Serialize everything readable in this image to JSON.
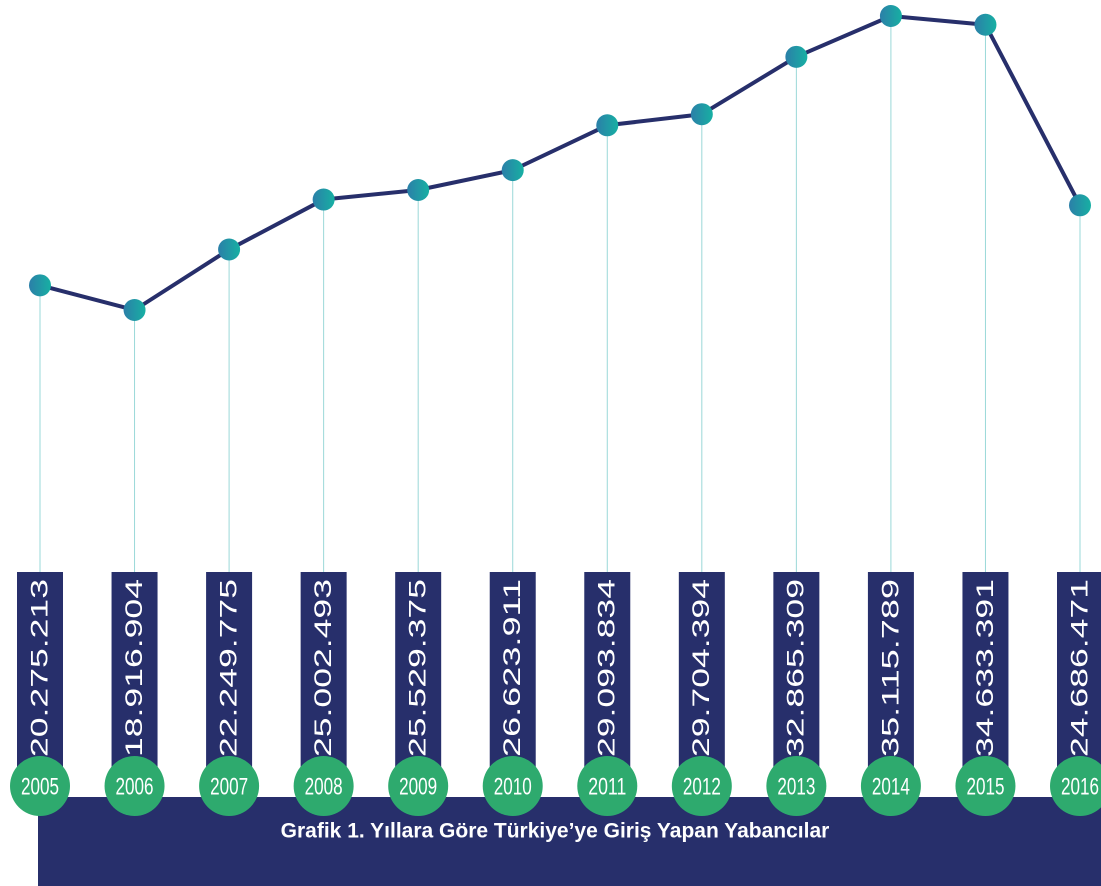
{
  "chart_data": {
    "type": "line",
    "title": "Grafik 1. Yıllara Göre Türkiye’ye Giriş Yapan Yabancılar",
    "categories": [
      "2005",
      "2006",
      "2007",
      "2008",
      "2009",
      "2010",
      "2011",
      "2012",
      "2013",
      "2014",
      "2015",
      "2016"
    ],
    "values": [
      20275213,
      18916904,
      22249775,
      25002493,
      25529375,
      26623911,
      29093834,
      29704394,
      32865309,
      35115789,
      34633391,
      24686471
    ],
    "value_labels": [
      "20.275.213",
      "18.916.904",
      "22.249.775",
      "25.002.493",
      "25.529.375",
      "26.623.911",
      "29.093.834",
      "29.704.394",
      "32.865.309",
      "35.115.789",
      "34.633.391",
      "24.686.471"
    ],
    "color": "#272f6b"
  }
}
